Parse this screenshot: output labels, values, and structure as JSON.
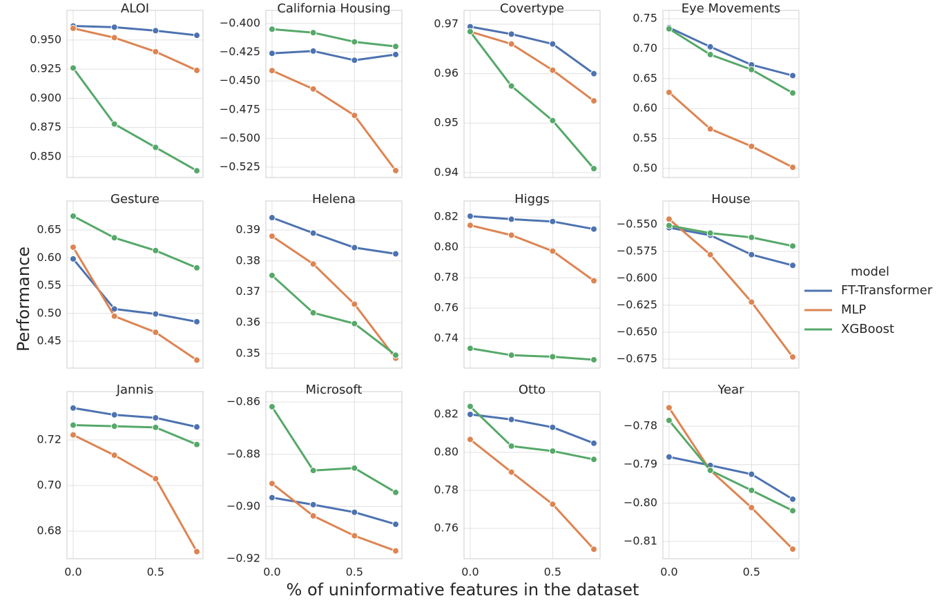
{
  "figure": {
    "ylabel": "Performance",
    "xlabel": "% of uninformative features in the dataset",
    "legend_title": "model"
  },
  "chart_data": [
    {
      "type": "line",
      "title": "ALOI",
      "x": [
        0,
        0.25,
        0.5,
        0.75
      ],
      "xlim": [
        -0.0375,
        0.7875
      ],
      "xticks": [
        0,
        0.5
      ],
      "ylim": [
        0.8322,
        0.9754
      ],
      "yticks": [
        {
          "value": 0.85,
          "label": "0.850"
        },
        {
          "value": 0.875,
          "label": "0.875"
        },
        {
          "value": 0.9,
          "label": "0.900"
        },
        {
          "value": 0.925,
          "label": "0.925"
        },
        {
          "value": 0.95,
          "label": "0.950"
        }
      ],
      "grid": true,
      "series": [
        {
          "name": "FT-Transformer",
          "color": "#4c72b0",
          "values": [
            0.962,
            0.961,
            0.958,
            0.954
          ]
        },
        {
          "name": "MLP",
          "color": "#dd8452",
          "values": [
            0.96,
            0.952,
            0.94,
            0.924
          ]
        },
        {
          "name": "XGBoost",
          "color": "#55a868",
          "values": [
            0.926,
            0.878,
            0.858,
            0.838
          ]
        }
      ]
    },
    {
      "type": "line",
      "title": "California Housing",
      "x": [
        0,
        0.25,
        0.5,
        0.75
      ],
      "xlim": [
        -0.0375,
        0.7875
      ],
      "xticks": [
        0,
        0.5
      ],
      "ylim": [
        -0.534,
        -0.3886
      ],
      "yticks": [
        {
          "value": -0.525,
          "label": "−0.525"
        },
        {
          "value": -0.5,
          "label": "−0.500"
        },
        {
          "value": -0.475,
          "label": "−0.475"
        },
        {
          "value": -0.45,
          "label": "−0.450"
        },
        {
          "value": -0.425,
          "label": "−0.425"
        },
        {
          "value": -0.4,
          "label": "−0.400"
        }
      ],
      "grid": true,
      "series": [
        {
          "name": "FT-Transformer",
          "color": "#4c72b0",
          "values": [
            -0.426,
            -0.424,
            -0.432,
            -0.427
          ]
        },
        {
          "name": "MLP",
          "color": "#dd8452",
          "values": [
            -0.441,
            -0.457,
            -0.48,
            -0.528
          ]
        },
        {
          "name": "XGBoost",
          "color": "#55a868",
          "values": [
            -0.405,
            -0.408,
            -0.416,
            -0.42
          ]
        }
      ]
    },
    {
      "type": "line",
      "title": "Covertype",
      "x": [
        0,
        0.25,
        0.5,
        0.75
      ],
      "xlim": [
        -0.0375,
        0.7875
      ],
      "xticks": [
        0,
        0.5
      ],
      "ylim": [
        0.939,
        0.9728
      ],
      "yticks": [
        0.94,
        0.95,
        0.96,
        0.97
      ],
      "grid": true,
      "series": [
        {
          "name": "FT-Transformer",
          "color": "#4c72b0",
          "values": [
            0.9695,
            0.968,
            0.966,
            0.96
          ]
        },
        {
          "name": "MLP",
          "color": "#dd8452",
          "values": [
            0.9685,
            0.966,
            0.9607,
            0.9545
          ]
        },
        {
          "name": "XGBoost",
          "color": "#55a868",
          "values": [
            0.9685,
            0.9575,
            0.9505,
            0.9408
          ]
        }
      ]
    },
    {
      "type": "line",
      "title": "Eye Movements",
      "x": [
        0,
        0.25,
        0.5,
        0.75
      ],
      "xlim": [
        -0.0375,
        0.7875
      ],
      "xticks": [
        0,
        0.5
      ],
      "ylim": [
        0.485,
        0.7638
      ],
      "yticks": [
        {
          "value": 0.5,
          "label": "0.50"
        },
        0.55,
        {
          "value": 0.6,
          "label": "0.60"
        },
        0.65,
        {
          "value": 0.7,
          "label": "0.70"
        },
        0.75
      ],
      "grid": true,
      "series": [
        {
          "name": "FT-Transformer",
          "color": "#4c72b0",
          "values": [
            0.735,
            0.703,
            0.673,
            0.655
          ]
        },
        {
          "name": "MLP",
          "color": "#dd8452",
          "values": [
            0.627,
            0.566,
            0.537,
            0.502
          ]
        },
        {
          "name": "XGBoost",
          "color": "#55a868",
          "values": [
            0.733,
            0.69,
            0.665,
            0.626
          ]
        }
      ]
    },
    {
      "type": "line",
      "title": "Gesture",
      "x": [
        0,
        0.25,
        0.5,
        0.75
      ],
      "xlim": [
        -0.0375,
        0.7875
      ],
      "xticks": [
        0,
        0.5
      ],
      "ylim": [
        0.4016,
        0.7022
      ],
      "yticks": [
        0.45,
        {
          "value": 0.5,
          "label": "0.50"
        },
        0.55,
        {
          "value": 0.6,
          "label": "0.60"
        },
        0.65
      ],
      "grid": true,
      "series": [
        {
          "name": "FT-Transformer",
          "color": "#4c72b0",
          "values": [
            0.598,
            0.508,
            0.499,
            0.485
          ]
        },
        {
          "name": "MLP",
          "color": "#dd8452",
          "values": [
            0.619,
            0.495,
            0.466,
            0.416
          ]
        },
        {
          "name": "XGBoost",
          "color": "#55a868",
          "values": [
            0.675,
            0.636,
            0.613,
            0.582
          ]
        }
      ]
    },
    {
      "type": "line",
      "title": "Helena",
      "x": [
        0,
        0.25,
        0.5,
        0.75
      ],
      "xlim": [
        -0.0375,
        0.7875
      ],
      "xticks": [
        0,
        0.5
      ],
      "ylim": [
        0.3453,
        0.3994
      ],
      "yticks": [
        0.35,
        0.36,
        0.37,
        0.38,
        0.39
      ],
      "grid": true,
      "series": [
        {
          "name": "FT-Transformer",
          "color": "#4c72b0",
          "values": [
            0.394,
            0.389,
            0.3843,
            0.3823
          ]
        },
        {
          "name": "MLP",
          "color": "#dd8452",
          "values": [
            0.388,
            0.379,
            0.366,
            0.3485
          ]
        },
        {
          "name": "XGBoost",
          "color": "#55a868",
          "values": [
            0.3753,
            0.3632,
            0.3597,
            0.3495
          ]
        }
      ]
    },
    {
      "type": "line",
      "title": "Higgs",
      "x": [
        0,
        0.25,
        0.5,
        0.75
      ],
      "xlim": [
        -0.0375,
        0.7875
      ],
      "xticks": [
        0,
        0.5
      ],
      "ylim": [
        0.7205,
        0.8305
      ],
      "yticks": [
        0.74,
        0.76,
        0.78,
        {
          "value": 0.8,
          "label": "0.80"
        },
        0.82
      ],
      "grid": true,
      "series": [
        {
          "name": "FT-Transformer",
          "color": "#4c72b0",
          "values": [
            0.8205,
            0.8185,
            0.817,
            0.812
          ]
        },
        {
          "name": "MLP",
          "color": "#dd8452",
          "values": [
            0.8145,
            0.808,
            0.7975,
            0.778
          ]
        },
        {
          "name": "XGBoost",
          "color": "#55a868",
          "values": [
            0.7335,
            0.729,
            0.728,
            0.726
          ]
        }
      ]
    },
    {
      "type": "line",
      "title": "House",
      "x": [
        0,
        0.25,
        0.5,
        0.75
      ],
      "xlim": [
        -0.0375,
        0.7875
      ],
      "xticks": [
        0,
        0.5
      ],
      "ylim": [
        -0.6833,
        -0.5282
      ],
      "yticks": [
        {
          "value": -0.675,
          "label": "−0.675"
        },
        {
          "value": -0.65,
          "label": "−0.650"
        },
        {
          "value": -0.625,
          "label": "−0.625"
        },
        {
          "value": -0.6,
          "label": "−0.600"
        },
        {
          "value": -0.575,
          "label": "−0.575"
        },
        {
          "value": -0.55,
          "label": "−0.550"
        }
      ],
      "grid": true,
      "series": [
        {
          "name": "FT-Transformer",
          "color": "#4c72b0",
          "values": [
            -0.553,
            -0.56,
            -0.578,
            -0.588
          ]
        },
        {
          "name": "MLP",
          "color": "#dd8452",
          "values": [
            -0.545,
            -0.578,
            -0.622,
            -0.673
          ]
        },
        {
          "name": "XGBoost",
          "color": "#55a868",
          "values": [
            -0.551,
            -0.558,
            -0.562,
            -0.57
          ]
        }
      ]
    },
    {
      "type": "line",
      "title": "Jannis",
      "x": [
        0,
        0.25,
        0.5,
        0.75
      ],
      "xlim": [
        -0.0375,
        0.7875
      ],
      "xticks": [
        {
          "value": 0,
          "label": "0.0"
        },
        {
          "value": 0.5,
          "label": "0.5"
        }
      ],
      "ylim": [
        0.6679,
        0.7412
      ],
      "yticks": [
        0.68,
        {
          "value": 0.7,
          "label": "0.70"
        },
        0.72
      ],
      "grid": true,
      "series": [
        {
          "name": "FT-Transformer",
          "color": "#4c72b0",
          "values": [
            0.734,
            0.731,
            0.7297,
            0.7257
          ]
        },
        {
          "name": "MLP",
          "color": "#dd8452",
          "values": [
            0.7222,
            0.7133,
            0.703,
            0.671
          ]
        },
        {
          "name": "XGBoost",
          "color": "#55a868",
          "values": [
            0.7265,
            0.726,
            0.7255,
            0.718
          ]
        }
      ]
    },
    {
      "type": "line",
      "title": "Microsoft",
      "x": [
        0,
        0.25,
        0.5,
        0.75
      ],
      "xlim": [
        -0.0375,
        0.7875
      ],
      "xticks": [
        {
          "value": 0,
          "label": "0.0"
        },
        {
          "value": 0.5,
          "label": "0.5"
        }
      ],
      "ylim": [
        -0.92,
        -0.856
      ],
      "yticks": [
        {
          "value": -0.92,
          "label": "−0.92"
        },
        {
          "value": -0.9,
          "label": "−0.90"
        },
        {
          "value": -0.88,
          "label": "−0.88"
        },
        {
          "value": -0.86,
          "label": "−0.86"
        }
      ],
      "grid": true,
      "series": [
        {
          "name": "FT-Transformer",
          "color": "#4c72b0",
          "values": [
            -0.8966,
            -0.8993,
            -0.9022,
            -0.9068
          ]
        },
        {
          "name": "MLP",
          "color": "#dd8452",
          "values": [
            -0.8912,
            -0.9036,
            -0.9112,
            -0.917
          ]
        },
        {
          "name": "XGBoost",
          "color": "#55a868",
          "values": [
            -0.8618,
            -0.8862,
            -0.8853,
            -0.8946
          ]
        }
      ]
    },
    {
      "type": "line",
      "title": "Otto",
      "x": [
        0,
        0.25,
        0.5,
        0.75
      ],
      "xlim": [
        -0.0375,
        0.7875
      ],
      "xticks": [
        {
          "value": 0,
          "label": "0.0"
        },
        {
          "value": 0.5,
          "label": "0.5"
        }
      ],
      "ylim": [
        0.744,
        0.832
      ],
      "yticks": [
        0.76,
        0.78,
        {
          "value": 0.8,
          "label": "0.80"
        },
        0.82
      ],
      "grid": true,
      "series": [
        {
          "name": "FT-Transformer",
          "color": "#4c72b0",
          "values": [
            0.82,
            0.8173,
            0.8132,
            0.8048
          ]
        },
        {
          "name": "MLP",
          "color": "#dd8452",
          "values": [
            0.8068,
            0.7896,
            0.7727,
            0.749
          ]
        },
        {
          "name": "XGBoost",
          "color": "#55a868",
          "values": [
            0.8242,
            0.8033,
            0.8007,
            0.7963
          ]
        }
      ]
    },
    {
      "type": "line",
      "title": "Year",
      "x": [
        0,
        0.25,
        0.5,
        0.75
      ],
      "xlim": [
        -0.0375,
        0.7875
      ],
      "xticks": [
        {
          "value": 0,
          "label": "0.0"
        },
        {
          "value": 0.5,
          "label": "0.5"
        }
      ],
      "ylim": [
        -0.8145,
        -0.771
      ],
      "yticks": [
        {
          "value": -0.81,
          "label": "−0.81"
        },
        {
          "value": -0.8,
          "label": "−0.80"
        },
        {
          "value": -0.79,
          "label": "−0.79"
        },
        {
          "value": -0.78,
          "label": "−0.78"
        }
      ],
      "grid": true,
      "series": [
        {
          "name": "FT-Transformer",
          "color": "#4c72b0",
          "values": [
            -0.788,
            -0.7902,
            -0.7925,
            -0.799
          ]
        },
        {
          "name": "MLP",
          "color": "#dd8452",
          "values": [
            -0.7752,
            -0.7915,
            -0.8012,
            -0.812
          ]
        },
        {
          "name": "XGBoost",
          "color": "#55a868",
          "values": [
            -0.7785,
            -0.7915,
            -0.7967,
            -0.802
          ]
        }
      ]
    }
  ]
}
